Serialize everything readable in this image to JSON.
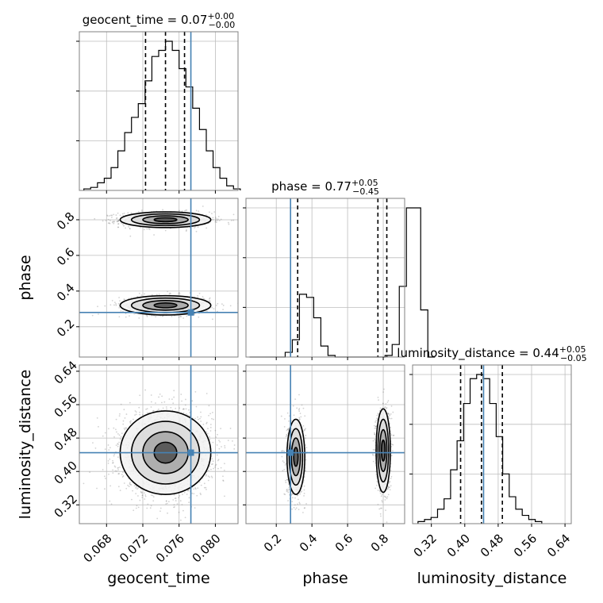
{
  "chart_data": {
    "type": "corner",
    "parameters": [
      "geocent_time",
      "phase",
      "luminosity_distance"
    ],
    "axis_labels": {
      "geocent_time": "geocent_time",
      "phase": "phase",
      "luminosity_distance": "luminosity_distance"
    },
    "truths": {
      "geocent_time": 0.0773,
      "phase": 0.28,
      "luminosity_distance": 0.445
    },
    "ranges": {
      "geocent_time": [
        0.065,
        0.0825
      ],
      "phase": [
        0.03,
        0.92
      ],
      "luminosity_distance": [
        0.275,
        0.655
      ]
    },
    "ticks": {
      "geocent_time": [
        0.068,
        0.072,
        0.076,
        0.08
      ],
      "phase": [
        0.2,
        0.4,
        0.6,
        0.8
      ],
      "luminosity_distance": [
        0.32,
        0.4,
        0.48,
        0.56,
        0.64
      ]
    },
    "tick_labels": {
      "geocent_time": [
        "0.068",
        "0.072",
        "0.076",
        "0.080"
      ],
      "phase": [
        "0.2",
        "0.4",
        "0.6",
        "0.8"
      ],
      "luminosity_distance": [
        "0.32",
        "0.40",
        "0.48",
        "0.56",
        "0.64"
      ]
    },
    "titles": {
      "geocent_time": {
        "main": "geocent_time = 0.07",
        "sup": "+0.00",
        "sub": "−0.00"
      },
      "phase": {
        "main": "phase = 0.77",
        "sup": "+0.05",
        "sub": "−0.45"
      },
      "luminosity_distance": {
        "main": "luminosity_distance = 0.44",
        "sup": "+0.05",
        "sub": "−0.05"
      }
    },
    "quantiles": {
      "geocent_time": [
        0.0723,
        0.0745,
        0.0766
      ],
      "phase": [
        0.32,
        0.77,
        0.82
      ],
      "luminosity_distance": [
        0.39,
        0.44,
        0.49
      ]
    },
    "hist_1d": {
      "geocent_time": {
        "edges_start": 0.0655,
        "bin_width": 0.00075,
        "counts": [
          1,
          2,
          5,
          8,
          15,
          26,
          38,
          48,
          57,
          72,
          88,
          92,
          98,
          92,
          80,
          68,
          54,
          40,
          26,
          15,
          8,
          3,
          1
        ]
      },
      "phase": {
        "edges_start": 0.05,
        "bin_width": 0.04,
        "counts": [
          0,
          0,
          0,
          0,
          0,
          3,
          11,
          40,
          38,
          25,
          7,
          1,
          0,
          0,
          0,
          0,
          0,
          0,
          0,
          1,
          8,
          45,
          95,
          95,
          30,
          0
        ]
      },
      "luminosity_distance": {
        "edges_start": 0.288,
        "bin_width": 0.0156,
        "counts": [
          1,
          2,
          3,
          7,
          12,
          26,
          40,
          58,
          70,
          72,
          70,
          58,
          42,
          24,
          13,
          7,
          4,
          2,
          1
        ]
      }
    },
    "posterior_modes": {
      "phase_vs_geocent_time": [
        {
          "mean": [
            0.0745,
            0.8
          ],
          "sd": [
            0.0025,
            0.022
          ],
          "n": 1100
        },
        {
          "mean": [
            0.0745,
            0.32
          ],
          "sd": [
            0.0025,
            0.027
          ],
          "n": 700
        }
      ],
      "luminosity_distance_vs_geocent_time": [
        {
          "mean": [
            0.0745,
            0.445
          ],
          "sd": [
            0.0025,
            0.05
          ],
          "n": 2200
        }
      ],
      "luminosity_distance_vs_phase": [
        {
          "mean": [
            0.31,
            0.435
          ],
          "sd": [
            0.025,
            0.045
          ],
          "n": 900
        },
        {
          "mean": [
            0.8,
            0.45
          ],
          "sd": [
            0.02,
            0.05
          ],
          "n": 1200
        }
      ]
    },
    "colors": {
      "truth": "#4682b4",
      "hist": "#000000",
      "grid": "#bdbdbd",
      "scatter": "#7f7f7f"
    },
    "grid": true,
    "legend": "none"
  }
}
